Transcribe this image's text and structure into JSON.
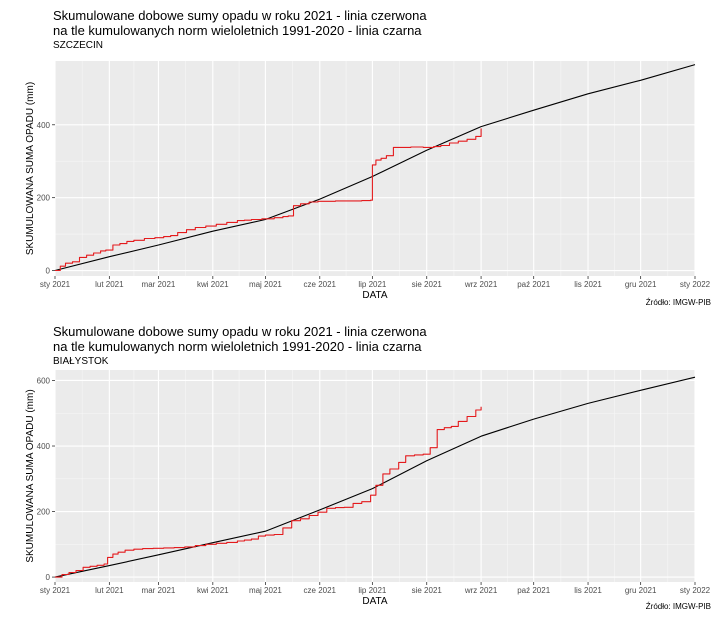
{
  "chart_data": [
    {
      "type": "line",
      "title": "Skumulowane dobowe sumy opadu w roku 2021 - linia czerwona",
      "title_line2": "na tle kumulowanych norm wieloletnich 1991-2020 - linia czarna",
      "subtitle": "SZCZECIN",
      "xlabel": "DATA",
      "ylabel": "SKUMULOWANA SUMA OPADU (mm)",
      "caption": "Źródło: IMGW-PIB",
      "xlim": [
        0,
        365
      ],
      "ylim": [
        -15,
        575
      ],
      "x_ticks": [
        {
          "value": 0,
          "label": "sty 2021"
        },
        {
          "value": 31,
          "label": "lut 2021"
        },
        {
          "value": 59,
          "label": "mar 2021"
        },
        {
          "value": 90,
          "label": "kwi 2021"
        },
        {
          "value": 120,
          "label": "maj 2021"
        },
        {
          "value": 151,
          "label": "cze 2021"
        },
        {
          "value": 181,
          "label": "lip 2021"
        },
        {
          "value": 212,
          "label": "sie 2021"
        },
        {
          "value": 243,
          "label": "wrz 2021"
        },
        {
          "value": 273,
          "label": "paź 2021"
        },
        {
          "value": 304,
          "label": "lis 2021"
        },
        {
          "value": 334,
          "label": "gru 2021"
        },
        {
          "value": 365,
          "label": "sty 2022"
        }
      ],
      "y_ticks": [
        0,
        200,
        400
      ],
      "grid": true,
      "series": [
        {
          "color": "#000000",
          "x": [
            0,
            31,
            59,
            90,
            120,
            151,
            181,
            212,
            243,
            273,
            304,
            334,
            365
          ],
          "y": [
            0,
            38,
            70,
            108,
            140,
            196,
            258,
            330,
            395,
            440,
            485,
            522,
            565
          ]
        },
        {
          "color": "#e41a1c",
          "step": true,
          "x": [
            0,
            3,
            6,
            10,
            14,
            18,
            22,
            26,
            29,
            33,
            37,
            41,
            45,
            51,
            57,
            62,
            66,
            70,
            75,
            80,
            86,
            92,
            98,
            104,
            108,
            112,
            118,
            125,
            130,
            133,
            136,
            140,
            145,
            150,
            160,
            175,
            180,
            181,
            183,
            186,
            189,
            193,
            197,
            203,
            210,
            216,
            220,
            225,
            230,
            235,
            240,
            243
          ],
          "y": [
            0,
            12,
            20,
            24,
            36,
            42,
            48,
            54,
            56,
            70,
            74,
            80,
            83,
            88,
            90,
            93,
            96,
            104,
            112,
            118,
            122,
            127,
            132,
            137,
            138,
            140,
            142,
            145,
            148,
            150,
            178,
            183,
            188,
            190,
            191,
            192,
            193,
            290,
            303,
            308,
            315,
            338,
            338,
            339,
            338,
            340,
            343,
            350,
            355,
            360,
            368,
            390
          ]
        }
      ]
    },
    {
      "type": "line",
      "title": "Skumulowane dobowe sumy opadu w roku 2021 - linia czerwona",
      "title_line2": "na tle kumulowanych norm wieloletnich 1991-2020 - linia czarna",
      "subtitle": "BIAŁYSTOK",
      "xlabel": "DATA",
      "ylabel": "SKUMULOWANA SUMA OPADU (mm)",
      "caption": "Źródło: IMGW-PIB",
      "xlim": [
        0,
        365
      ],
      "ylim": [
        -15,
        632
      ],
      "x_ticks": [
        {
          "value": 0,
          "label": "sty 2021"
        },
        {
          "value": 31,
          "label": "lut 2021"
        },
        {
          "value": 59,
          "label": "mar 2021"
        },
        {
          "value": 90,
          "label": "kwi 2021"
        },
        {
          "value": 120,
          "label": "maj 2021"
        },
        {
          "value": 151,
          "label": "cze 2021"
        },
        {
          "value": 181,
          "label": "lip 2021"
        },
        {
          "value": 212,
          "label": "sie 2021"
        },
        {
          "value": 243,
          "label": "wrz 2021"
        },
        {
          "value": 273,
          "label": "paź 2021"
        },
        {
          "value": 304,
          "label": "lis 2021"
        },
        {
          "value": 334,
          "label": "gru 2021"
        },
        {
          "value": 365,
          "label": "sty 2022"
        }
      ],
      "y_ticks": [
        0,
        200,
        400,
        600
      ],
      "grid": true,
      "series": [
        {
          "color": "#000000",
          "x": [
            0,
            31,
            59,
            90,
            120,
            151,
            181,
            212,
            243,
            273,
            304,
            334,
            365
          ],
          "y": [
            0,
            35,
            68,
            105,
            140,
            205,
            270,
            355,
            430,
            482,
            530,
            570,
            610
          ]
        },
        {
          "color": "#e41a1c",
          "step": true,
          "x": [
            0,
            4,
            8,
            12,
            16,
            20,
            24,
            28,
            30,
            33,
            36,
            40,
            45,
            50,
            56,
            62,
            68,
            74,
            80,
            86,
            92,
            98,
            104,
            108,
            112,
            116,
            120,
            125,
            130,
            135,
            140,
            145,
            150,
            155,
            160,
            165,
            170,
            175,
            180,
            183,
            187,
            191,
            196,
            200,
            205,
            210,
            214,
            218,
            222,
            226,
            230,
            235,
            240,
            243
          ],
          "y": [
            0,
            8,
            14,
            20,
            30,
            33,
            36,
            40,
            60,
            70,
            76,
            82,
            85,
            87,
            88,
            89,
            90,
            92,
            96,
            100,
            103,
            106,
            110,
            113,
            116,
            125,
            128,
            130,
            150,
            172,
            178,
            188,
            198,
            210,
            212,
            213,
            225,
            230,
            250,
            280,
            315,
            330,
            350,
            370,
            373,
            375,
            395,
            450,
            456,
            460,
            475,
            490,
            510,
            520
          ]
        }
      ]
    }
  ]
}
